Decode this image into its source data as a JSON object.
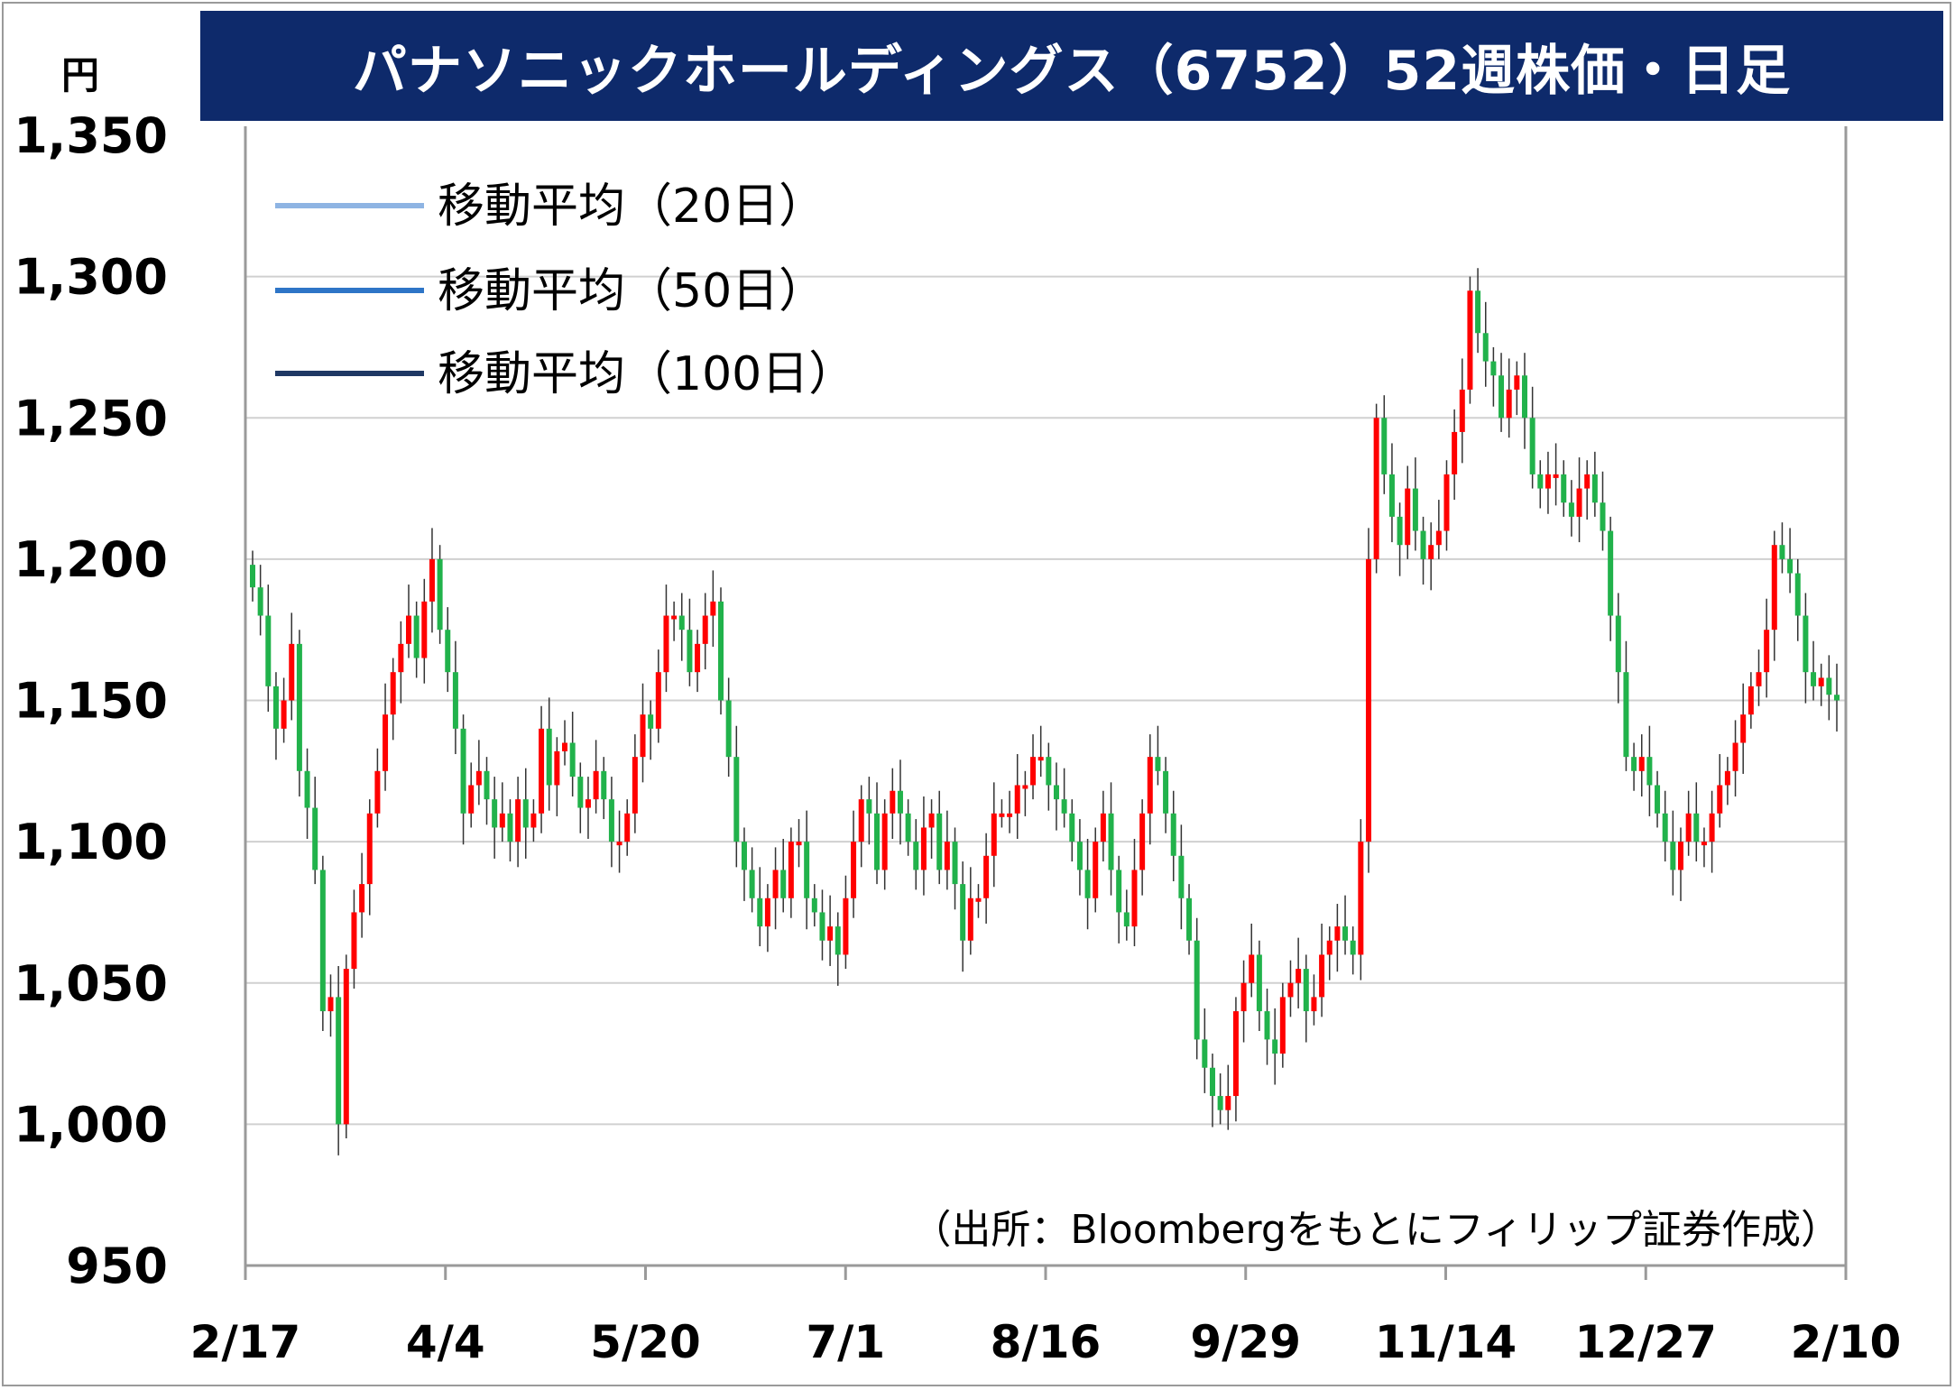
{
  "title": "パナソニックホールディングス（6752）52週株価・日足",
  "unit": "円",
  "source": "（出所：Bloombergをもとにフィリップ証券作成）",
  "colors": {
    "title_bg": "#0e2a6b",
    "up": "#ff0000",
    "down": "#21b24b",
    "ma20": "#8eb4e3",
    "ma50": "#2e75c7",
    "ma100": "#1f3864",
    "grid": "#d0d0d0"
  },
  "chart_data": {
    "type": "candlestick",
    "title": "パナソニックホールディングス（6752）52週株価・日足",
    "ylabel": "円",
    "ylim": [
      950,
      1350
    ],
    "y_ticks": [
      "1,350",
      "1,300",
      "1,250",
      "1,200",
      "1,150",
      "1,100",
      "1,050",
      "1,000",
      "950"
    ],
    "x_ticks": [
      "2/17",
      "4/4",
      "5/20",
      "7/1",
      "8/16",
      "9/29",
      "11/14",
      "12/27",
      "2/10"
    ],
    "grid": true,
    "legend_position": "top-left",
    "legend": [
      {
        "label": "移動平均（20日）",
        "color": "#8eb4e3"
      },
      {
        "label": "移動平均（50日）",
        "color": "#2e75c7"
      },
      {
        "label": "移動平均（100日）",
        "color": "#1f3864"
      }
    ],
    "close": [
      1190,
      1180,
      1155,
      1140,
      1150,
      1170,
      1125,
      1112,
      1090,
      1040,
      1045,
      1000,
      1055,
      1075,
      1085,
      1110,
      1125,
      1145,
      1160,
      1170,
      1180,
      1165,
      1185,
      1200,
      1175,
      1160,
      1140,
      1110,
      1120,
      1125,
      1115,
      1105,
      1110,
      1100,
      1115,
      1105,
      1110,
      1140,
      1120,
      1132,
      1135,
      1123,
      1112,
      1115,
      1125,
      1115,
      1100,
      1100,
      1110,
      1130,
      1145,
      1140,
      1160,
      1180,
      1180,
      1175,
      1160,
      1170,
      1180,
      1185,
      1150,
      1130,
      1100,
      1090,
      1080,
      1070,
      1080,
      1090,
      1080,
      1100,
      1100,
      1080,
      1075,
      1065,
      1070,
      1060,
      1080,
      1100,
      1115,
      1110,
      1090,
      1110,
      1118,
      1110,
      1100,
      1090,
      1105,
      1110,
      1090,
      1100,
      1085,
      1065,
      1080,
      1080,
      1095,
      1110,
      1110,
      1110,
      1120,
      1120,
      1130,
      1130,
      1120,
      1115,
      1110,
      1100,
      1090,
      1080,
      1100,
      1110,
      1090,
      1075,
      1070,
      1090,
      1110,
      1130,
      1125,
      1110,
      1095,
      1080,
      1065,
      1030,
      1020,
      1010,
      1005,
      1010,
      1040,
      1050,
      1060,
      1040,
      1030,
      1025,
      1045,
      1050,
      1055,
      1040,
      1045,
      1060,
      1065,
      1070,
      1065,
      1060,
      1100,
      1200,
      1250,
      1230,
      1215,
      1205,
      1225,
      1210,
      1200,
      1205,
      1210,
      1230,
      1245,
      1260,
      1295,
      1280,
      1270,
      1265,
      1250,
      1260,
      1265,
      1250,
      1230,
      1225,
      1230,
      1230,
      1220,
      1215,
      1225,
      1230,
      1220,
      1210,
      1180,
      1160,
      1130,
      1125,
      1130,
      1120,
      1110,
      1100,
      1090,
      1100,
      1110,
      1100,
      1100,
      1110,
      1120,
      1125,
      1135,
      1145,
      1155,
      1160,
      1175,
      1205,
      1200,
      1195,
      1180,
      1160,
      1155,
      1158,
      1152,
      1150
    ],
    "ma20": [],
    "ma50": [],
    "ma100": []
  }
}
